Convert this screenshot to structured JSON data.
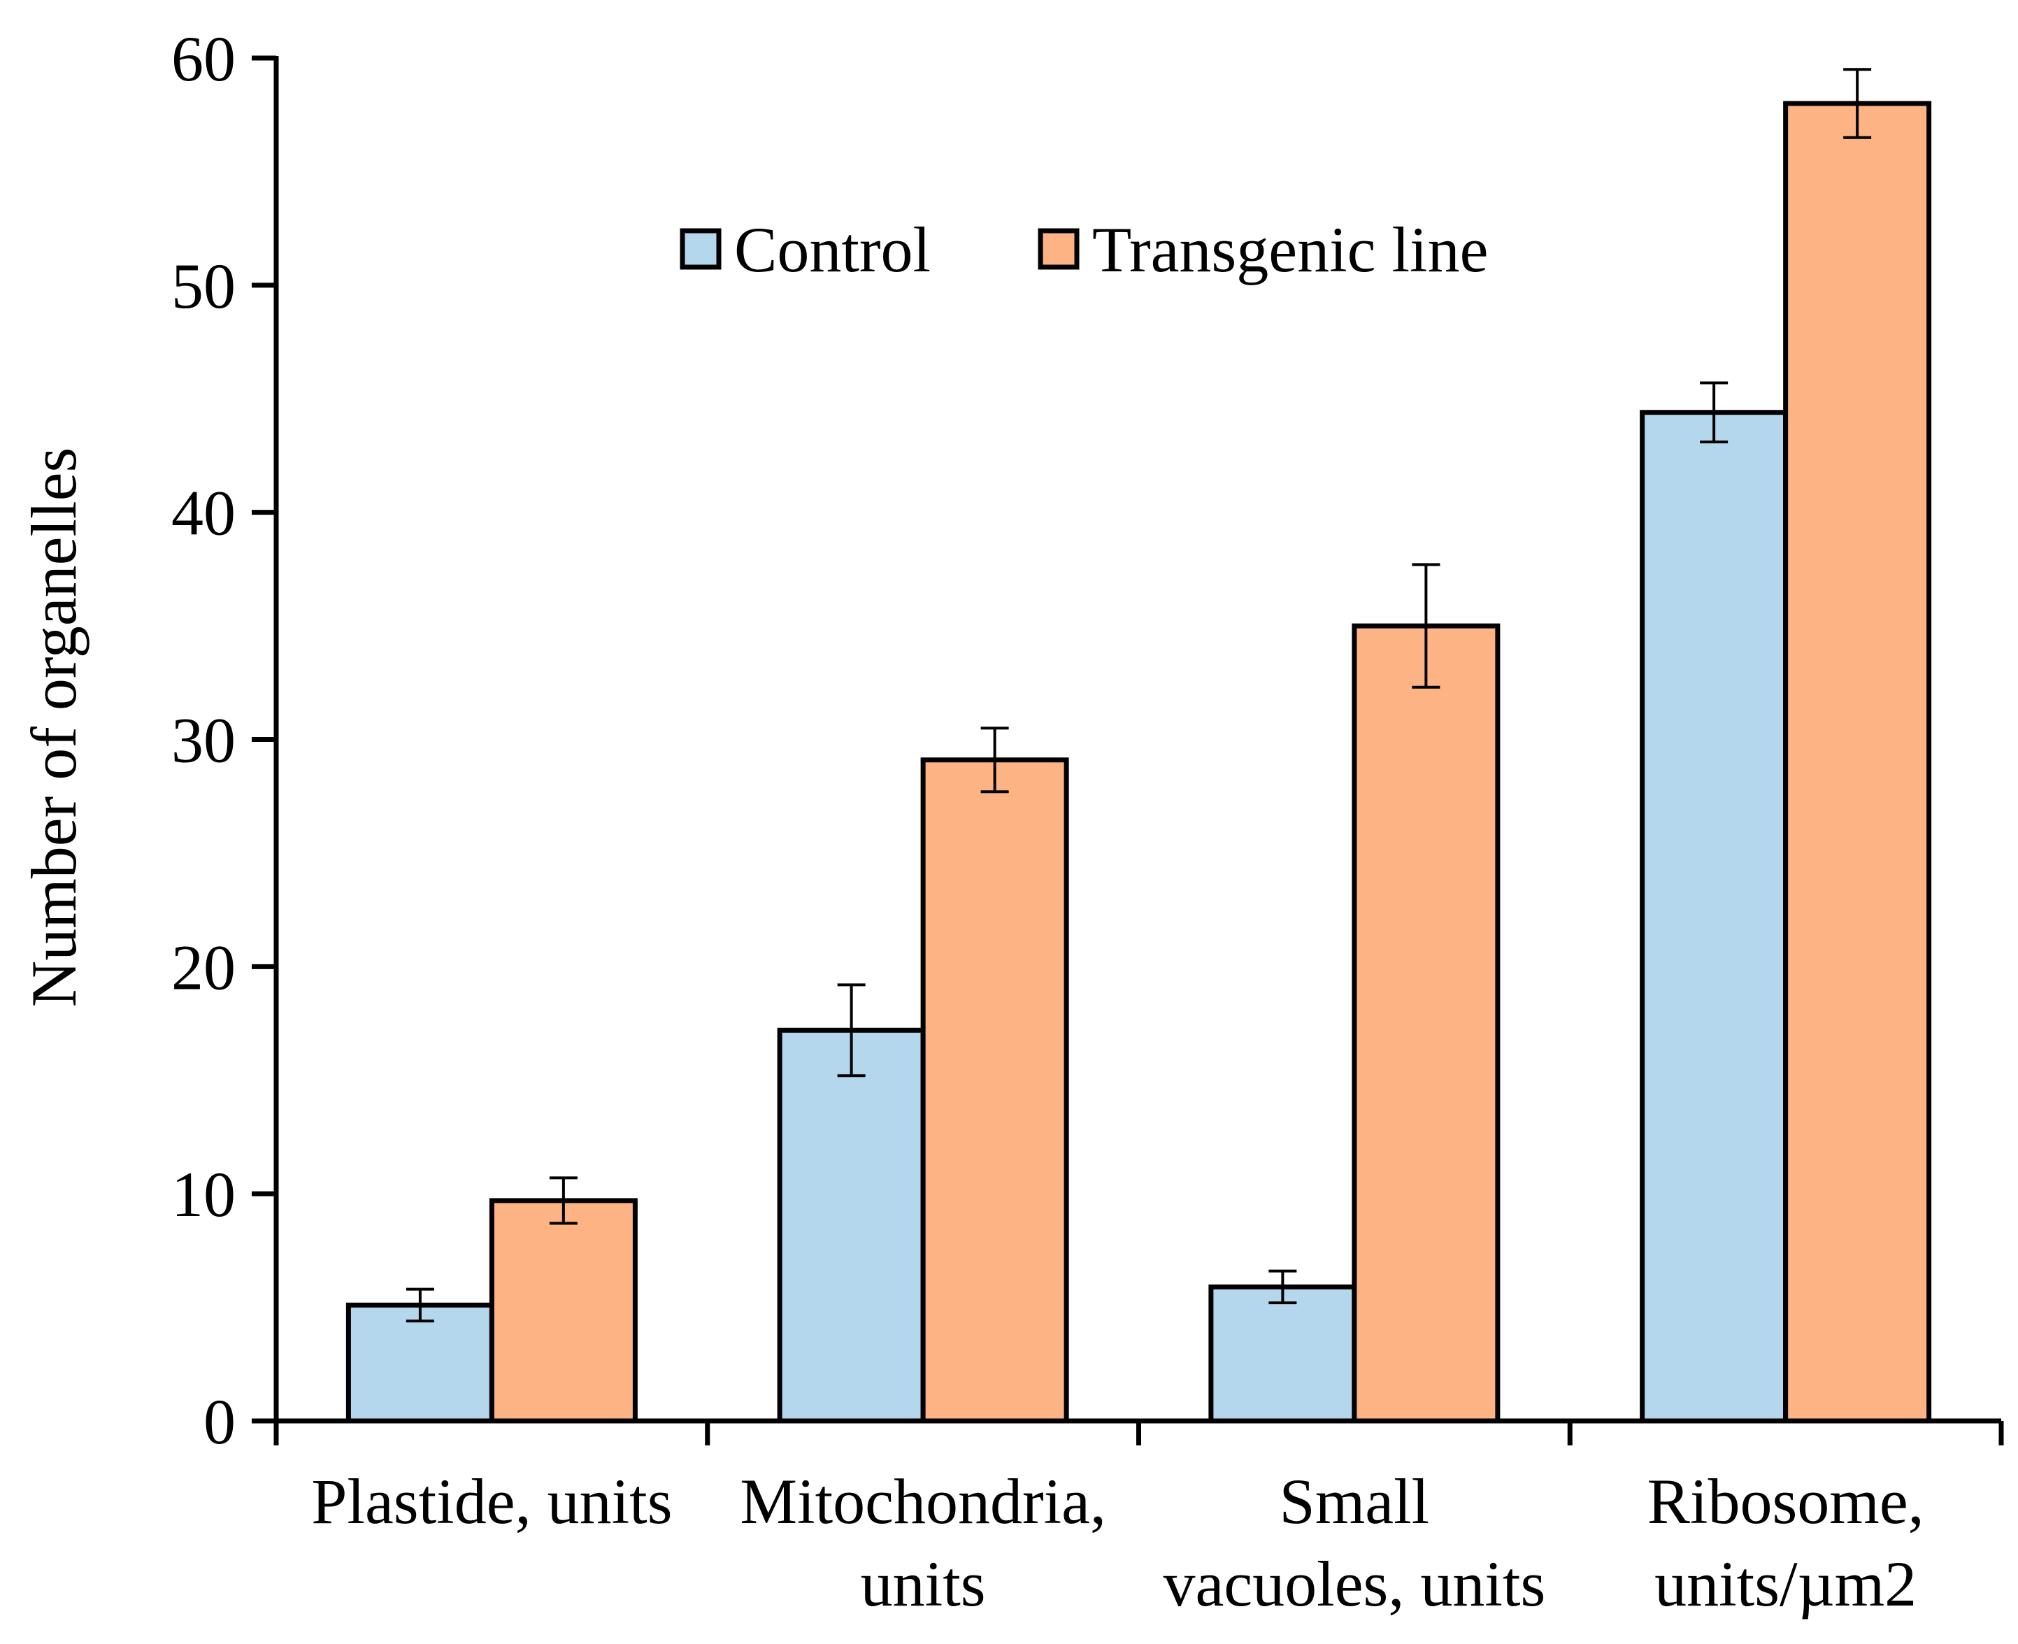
{
  "chart_data": {
    "type": "bar",
    "title": "",
    "xlabel": "",
    "ylabel": "Number of organelles",
    "ylim": [
      0,
      60
    ],
    "yticks": [
      0,
      10,
      20,
      30,
      40,
      50,
      60
    ],
    "grid": false,
    "legend_position": "top-center",
    "categories": [
      [
        "Plastide, units"
      ],
      [
        "Mitochondria,",
        "units"
      ],
      [
        "Small",
        "vacuoles, units"
      ],
      [
        "Ribosome,",
        "units/µm2"
      ]
    ],
    "series": [
      {
        "name": "Control",
        "color": "#B4D7EE",
        "values": [
          5.1,
          17.2,
          5.9,
          44.4
        ],
        "errors": [
          0.7,
          2.0,
          0.7,
          1.3
        ]
      },
      {
        "name": "Transgenic line",
        "color": "#FDB383",
        "values": [
          9.7,
          29.1,
          35.0,
          58.0
        ],
        "errors": [
          1.0,
          1.4,
          2.7,
          1.5
        ]
      }
    ]
  }
}
